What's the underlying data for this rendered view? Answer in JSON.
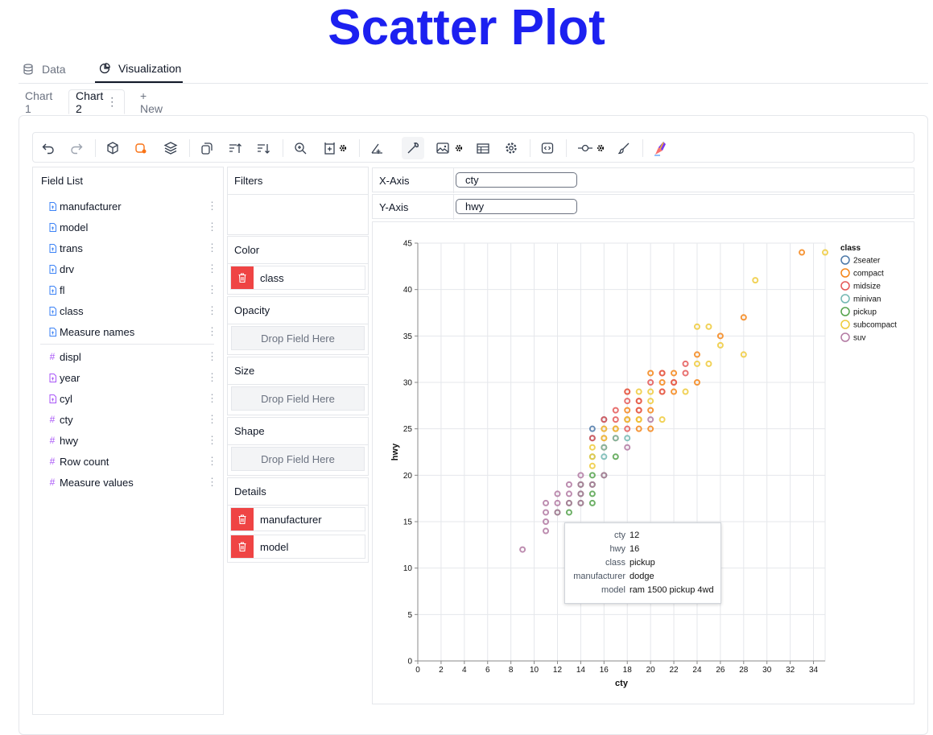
{
  "page": {
    "title": "Scatter Plot"
  },
  "main_tabs": [
    {
      "label": "Data",
      "icon": "database-icon"
    },
    {
      "label": "Visualization",
      "icon": "pie-chart-icon"
    }
  ],
  "chart_tabs": {
    "tab1": "Chart 1",
    "tab2": "Chart 2",
    "tab2_menu": "⋮",
    "new": "+ New"
  },
  "toolbar": {
    "icons": [
      "undo-icon",
      "redo-icon",
      "cube-icon",
      "mark-icon",
      "layers-icon",
      "transpose-icon",
      "sort-ascending-icon",
      "sort-descending-icon",
      "zoom-icon",
      "size-icon",
      "gear-small-icon",
      "axis-icon",
      "wrench-icon",
      "image-icon",
      "gear-small-icon",
      "table-icon",
      "settings-icon",
      "code-icon",
      "node-icon",
      "gear-small-icon",
      "brush-icon",
      "painter-icon"
    ]
  },
  "field_list": {
    "title": "Field List",
    "dimensions": [
      "manufacturer",
      "model",
      "trans",
      "drv",
      "fl",
      "class",
      "Measure names"
    ],
    "measures": [
      "displ",
      "year",
      "cyl",
      "cty",
      "hwy",
      "Row count",
      "Measure values"
    ],
    "measure_icons": [
      "#",
      "doc",
      "doc",
      "#",
      "#",
      "#",
      "#"
    ],
    "menu": "⋮"
  },
  "shelves": {
    "filters": "Filters",
    "color": "Color",
    "color_field": "class",
    "opacity": "Opacity",
    "size": "Size",
    "shape": "Shape",
    "details": "Details",
    "details_fields": [
      "manufacturer",
      "model"
    ],
    "drop_placeholder": "Drop Field Here"
  },
  "encodings": {
    "x_label": "X-Axis",
    "x_field": "cty",
    "y_label": "Y-Axis",
    "y_field": "hwy"
  },
  "legend": {
    "title": "class",
    "items": [
      {
        "name": "2seater",
        "color": "#4c78a8"
      },
      {
        "name": "compact",
        "color": "#f58518"
      },
      {
        "name": "midsize",
        "color": "#e45756"
      },
      {
        "name": "minivan",
        "color": "#72b7b2"
      },
      {
        "name": "pickup",
        "color": "#54a24b"
      },
      {
        "name": "subcompact",
        "color": "#eeca3b"
      },
      {
        "name": "suv",
        "color": "#b279a2"
      }
    ]
  },
  "tooltip": {
    "rows": [
      {
        "key": "cty",
        "value": "12"
      },
      {
        "key": "hwy",
        "value": "16"
      },
      {
        "key": "class",
        "value": "pickup"
      },
      {
        "key": "manufacturer",
        "value": "dodge"
      },
      {
        "key": "model",
        "value": "ram 1500 pickup 4wd"
      }
    ]
  },
  "chart_data": {
    "type": "scatter",
    "xlabel": "cty",
    "ylabel": "hwy",
    "xlim": [
      0,
      35
    ],
    "ylim": [
      0,
      45
    ],
    "xticks": [
      0,
      2,
      4,
      6,
      8,
      10,
      12,
      14,
      16,
      18,
      20,
      22,
      24,
      26,
      28,
      30,
      32,
      34
    ],
    "yticks": [
      0,
      5,
      10,
      15,
      20,
      25,
      30,
      35,
      40,
      45
    ],
    "grid": true,
    "legend_position": "right",
    "series": [
      {
        "name": "2seater",
        "points": [
          [
            15,
            24
          ],
          [
            15,
            25
          ],
          [
            16,
            26
          ]
        ]
      },
      {
        "name": "compact",
        "points": [
          [
            18,
            29
          ],
          [
            20,
            31
          ],
          [
            21,
            30
          ],
          [
            19,
            26
          ],
          [
            18,
            26
          ],
          [
            17,
            25
          ],
          [
            18,
            27
          ],
          [
            19,
            27
          ],
          [
            20,
            27
          ],
          [
            21,
            29
          ],
          [
            22,
            29
          ],
          [
            24,
            33
          ],
          [
            24,
            30
          ],
          [
            26,
            35
          ],
          [
            28,
            37
          ],
          [
            33,
            44
          ],
          [
            21,
            31
          ],
          [
            22,
            31
          ],
          [
            19,
            28
          ],
          [
            17,
            24
          ],
          [
            16,
            23
          ],
          [
            19,
            25
          ],
          [
            20,
            25
          ],
          [
            22,
            30
          ]
        ]
      },
      {
        "name": "midsize",
        "points": [
          [
            16,
            26
          ],
          [
            17,
            26
          ],
          [
            18,
            28
          ],
          [
            18,
            29
          ],
          [
            19,
            28
          ],
          [
            20,
            30
          ],
          [
            21,
            29
          ],
          [
            21,
            31
          ],
          [
            22,
            30
          ],
          [
            23,
            31
          ],
          [
            23,
            32
          ],
          [
            16,
            25
          ],
          [
            17,
            27
          ],
          [
            18,
            26
          ],
          [
            19,
            27
          ],
          [
            15,
            24
          ],
          [
            16,
            24
          ],
          [
            17,
            25
          ],
          [
            18,
            25
          ]
        ]
      },
      {
        "name": "minivan",
        "points": [
          [
            16,
            22
          ],
          [
            15,
            22
          ],
          [
            18,
            24
          ],
          [
            17,
            24
          ],
          [
            16,
            23
          ]
        ]
      },
      {
        "name": "pickup",
        "points": [
          [
            12,
            16
          ],
          [
            13,
            16
          ],
          [
            13,
            17
          ],
          [
            14,
            17
          ],
          [
            15,
            17
          ],
          [
            15,
            18
          ],
          [
            14,
            18
          ],
          [
            15,
            19
          ],
          [
            16,
            20
          ],
          [
            15,
            20
          ],
          [
            14,
            19
          ],
          [
            17,
            22
          ]
        ]
      },
      {
        "name": "subcompact",
        "points": [
          [
            15,
            21
          ],
          [
            15,
            23
          ],
          [
            16,
            24
          ],
          [
            17,
            25
          ],
          [
            18,
            26
          ],
          [
            19,
            26
          ],
          [
            20,
            28
          ],
          [
            21,
            26
          ],
          [
            19,
            29
          ],
          [
            20,
            29
          ],
          [
            23,
            29
          ],
          [
            24,
            32
          ],
          [
            25,
            32
          ],
          [
            26,
            34
          ],
          [
            28,
            33
          ],
          [
            29,
            41
          ],
          [
            35,
            44
          ],
          [
            24,
            36
          ],
          [
            25,
            36
          ],
          [
            15,
            22
          ],
          [
            16,
            25
          ]
        ]
      },
      {
        "name": "suv",
        "points": [
          [
            9,
            12
          ],
          [
            11,
            14
          ],
          [
            11,
            15
          ],
          [
            11,
            16
          ],
          [
            11,
            17
          ],
          [
            12,
            17
          ],
          [
            12,
            18
          ],
          [
            13,
            17
          ],
          [
            13,
            18
          ],
          [
            13,
            19
          ],
          [
            14,
            17
          ],
          [
            14,
            19
          ],
          [
            14,
            20
          ],
          [
            15,
            19
          ],
          [
            16,
            20
          ],
          [
            18,
            23
          ],
          [
            20,
            26
          ],
          [
            12,
            16
          ],
          [
            14,
            18
          ]
        ]
      }
    ]
  }
}
